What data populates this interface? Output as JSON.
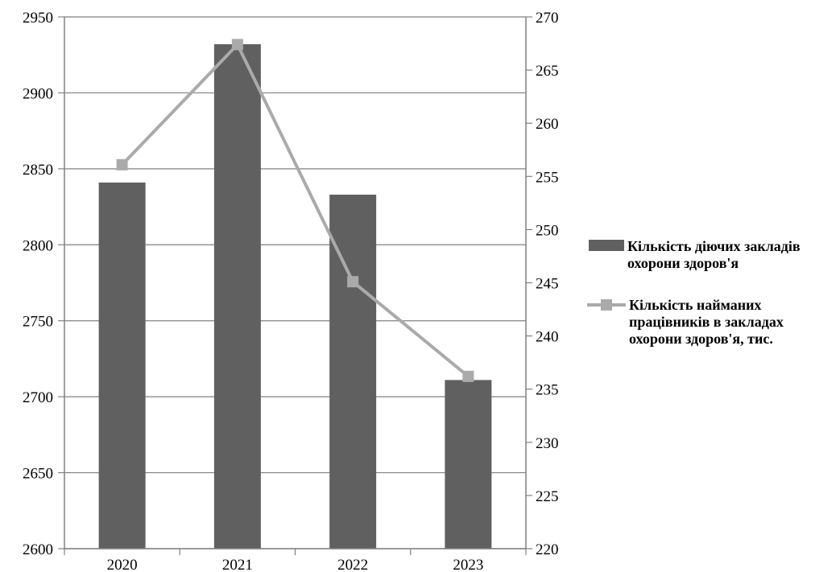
{
  "chart_data": {
    "type": "bar",
    "categories": [
      "2020",
      "2021",
      "2022",
      "2023"
    ],
    "series": [
      {
        "name": "Кількість діючих закладів охорони здоров'я",
        "kind": "bar",
        "axis": "left",
        "color": "#606060",
        "values": [
          2841,
          2932,
          2833,
          2711
        ]
      },
      {
        "name": "Кількість найманих працівників в закладах охорони здоров'я, тис.",
        "kind": "line",
        "axis": "right",
        "color": "#aaaaaa",
        "marker": "square",
        "values": [
          256.1,
          267.4,
          245.1,
          236.2
        ]
      }
    ],
    "y_left": {
      "min": 2600,
      "max": 2950,
      "step": 50,
      "ticks": [
        "2600",
        "2650",
        "2700",
        "2750",
        "2800",
        "2850",
        "2900",
        "2950"
      ]
    },
    "y_right": {
      "min": 220,
      "max": 270,
      "step": 5,
      "ticks": [
        "220",
        "225",
        "230",
        "235",
        "240",
        "245",
        "250",
        "255",
        "260",
        "265",
        "270"
      ]
    },
    "grid": true,
    "legend": {
      "position": "right",
      "bar_lines": [
        "Кількість діючих закладів",
        "охорони здоров'я"
      ],
      "line_lines": [
        "Кількість найманих",
        "працівників в закладах",
        "охорони здоров'я, тис."
      ]
    },
    "title": "",
    "xlabel": "",
    "ylabel": ""
  }
}
